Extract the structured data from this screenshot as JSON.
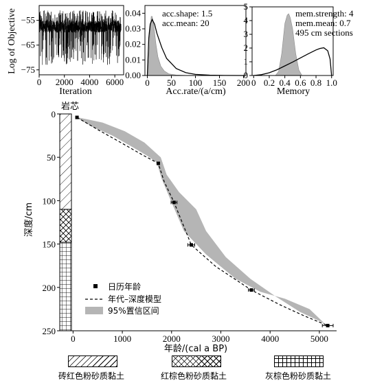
{
  "chart_data": [
    {
      "type": "line",
      "name": "trace",
      "ylabel": "Log of Objective",
      "xlabel": "Iteration",
      "xticks": [
        0,
        2000,
        4000,
        6000
      ],
      "yticks": [
        -55,
        -65,
        -75
      ],
      "xlim": [
        0,
        6700
      ],
      "ylim": [
        -77,
        -49
      ],
      "band": [
        -60,
        -55
      ],
      "spread": [
        -73,
        -51
      ]
    },
    {
      "type": "area",
      "name": "acc-rate",
      "xlabel": "Acc.rate/(a/cm)",
      "xticks": [
        0,
        50,
        100,
        150,
        200
      ],
      "yticks": [
        0.0,
        0.01,
        0.02,
        0.03,
        0.04
      ],
      "ytick_labels": [
        "0.00",
        "0.01",
        "0.02",
        "0.03",
        "0.04"
      ],
      "xlim": [
        -5,
        205
      ],
      "ylim": [
        0,
        0.045
      ],
      "annotations": [
        "acc.shape: 1.5",
        "acc.mean: 20"
      ],
      "posterior": {
        "x": [
          0,
          3,
          5,
          8,
          10,
          12,
          15,
          18,
          22,
          28,
          35,
          45,
          60,
          80,
          100
        ],
        "y": [
          0,
          0.01,
          0.025,
          0.038,
          0.038,
          0.035,
          0.028,
          0.02,
          0.012,
          0.006,
          0.003,
          0.001,
          0.0003,
          0.0001,
          0
        ]
      },
      "prior": {
        "x": [
          0,
          3,
          6,
          10,
          15,
          20,
          30,
          40,
          60,
          80,
          100,
          130,
          160,
          200
        ],
        "y": [
          0,
          0.024,
          0.033,
          0.036,
          0.033,
          0.027,
          0.018,
          0.011,
          0.0045,
          0.0018,
          0.0007,
          0.0002,
          5e-05,
          0
        ]
      }
    },
    {
      "type": "area",
      "name": "memory",
      "xlabel": "Memory",
      "xticks": [
        0,
        0.2,
        0.4,
        0.6,
        0.8,
        1.0
      ],
      "xtick_labels": [
        "0",
        "0.2",
        "0.4",
        "0.6",
        "0.8",
        "1.0"
      ],
      "yticks": [
        0,
        1,
        2,
        3,
        4,
        5
      ],
      "xlim": [
        -0.02,
        1.02
      ],
      "ylim": [
        0,
        5
      ],
      "annotations": [
        "mem.strength: 4",
        "mem.mean: 0.7",
        "495 cm sections"
      ],
      "posterior": {
        "x": [
          0.28,
          0.32,
          0.36,
          0.4,
          0.43,
          0.45,
          0.47,
          0.5,
          0.54,
          0.58,
          0.62
        ],
        "y": [
          0,
          0.3,
          1.6,
          3.8,
          4.4,
          4.5,
          4.2,
          3.4,
          1.6,
          0.4,
          0
        ]
      },
      "prior": {
        "x": [
          0,
          0.1,
          0.2,
          0.3,
          0.4,
          0.5,
          0.6,
          0.7,
          0.8,
          0.85,
          0.9,
          0.95,
          0.98,
          1.0
        ],
        "y": [
          0,
          0.06,
          0.2,
          0.42,
          0.7,
          0.98,
          1.28,
          1.58,
          1.86,
          1.97,
          2.02,
          1.8,
          1.2,
          0
        ]
      }
    },
    {
      "type": "line",
      "name": "age-depth",
      "xlabel": "年龄/(cal a BP)",
      "ylabel": "深度/cm",
      "xticks": [
        0,
        1000,
        2000,
        3000,
        4000,
        5000
      ],
      "yticks": [
        0,
        50,
        100,
        150,
        200,
        250
      ],
      "xlim": [
        -270,
        5350
      ],
      "ylim": [
        250,
        0
      ],
      "core_label": "岩芯",
      "dates": [
        {
          "age": 80,
          "depth": 4,
          "err": 25
        },
        {
          "age": 1730,
          "depth": 57,
          "err": 25
        },
        {
          "age": 2050,
          "depth": 102,
          "err": 60
        },
        {
          "age": 2400,
          "depth": 151,
          "err": 70
        },
        {
          "age": 3620,
          "depth": 203,
          "err": 60
        },
        {
          "age": 5170,
          "depth": 244,
          "err": 110
        }
      ],
      "model": {
        "age": [
          80,
          500,
          1000,
          1400,
          1730,
          1850,
          2050,
          2400,
          2900,
          3620,
          4200,
          4700,
          5170
        ],
        "depth": [
          4,
          18,
          34,
          47,
          57,
          78,
          102,
          151,
          176,
          203,
          220,
          233,
          244
        ]
      },
      "ci_upper": {
        "age": [
          60,
          400,
          800,
          1200,
          1500,
          1700,
          1800,
          2000,
          2250,
          2700,
          3300,
          3800,
          4300,
          4800,
          5150
        ],
        "depth": [
          4,
          15,
          25,
          38,
          48,
          56,
          75,
          102,
          135,
          162,
          190,
          205,
          213,
          225,
          244
        ]
      },
      "ci_lower": {
        "age": [
          100,
          600,
          1050,
          1450,
          1780,
          1900,
          2150,
          2500,
          2700,
          3100,
          3600,
          4100,
          4600,
          5050,
          5190
        ],
        "depth": [
          4,
          10,
          20,
          33,
          50,
          70,
          90,
          110,
          135,
          165,
          190,
          210,
          228,
          240,
          244
        ]
      },
      "legend": [
        "日历年龄",
        "年代–深度模型",
        "95%置信区间"
      ],
      "strata": [
        {
          "from": 0,
          "to": 110,
          "pattern": "hatch"
        },
        {
          "from": 110,
          "to": 148,
          "pattern": "cross"
        },
        {
          "from": 148,
          "to": 250,
          "pattern": "grid"
        }
      ]
    }
  ],
  "colors": {
    "band": "#b5b5b5",
    "ink": "#000000"
  },
  "bottom_legend": [
    "砖红色粉砂质黏土",
    "红棕色粉砂质黏土",
    "灰棕色粉砂质黏土"
  ]
}
